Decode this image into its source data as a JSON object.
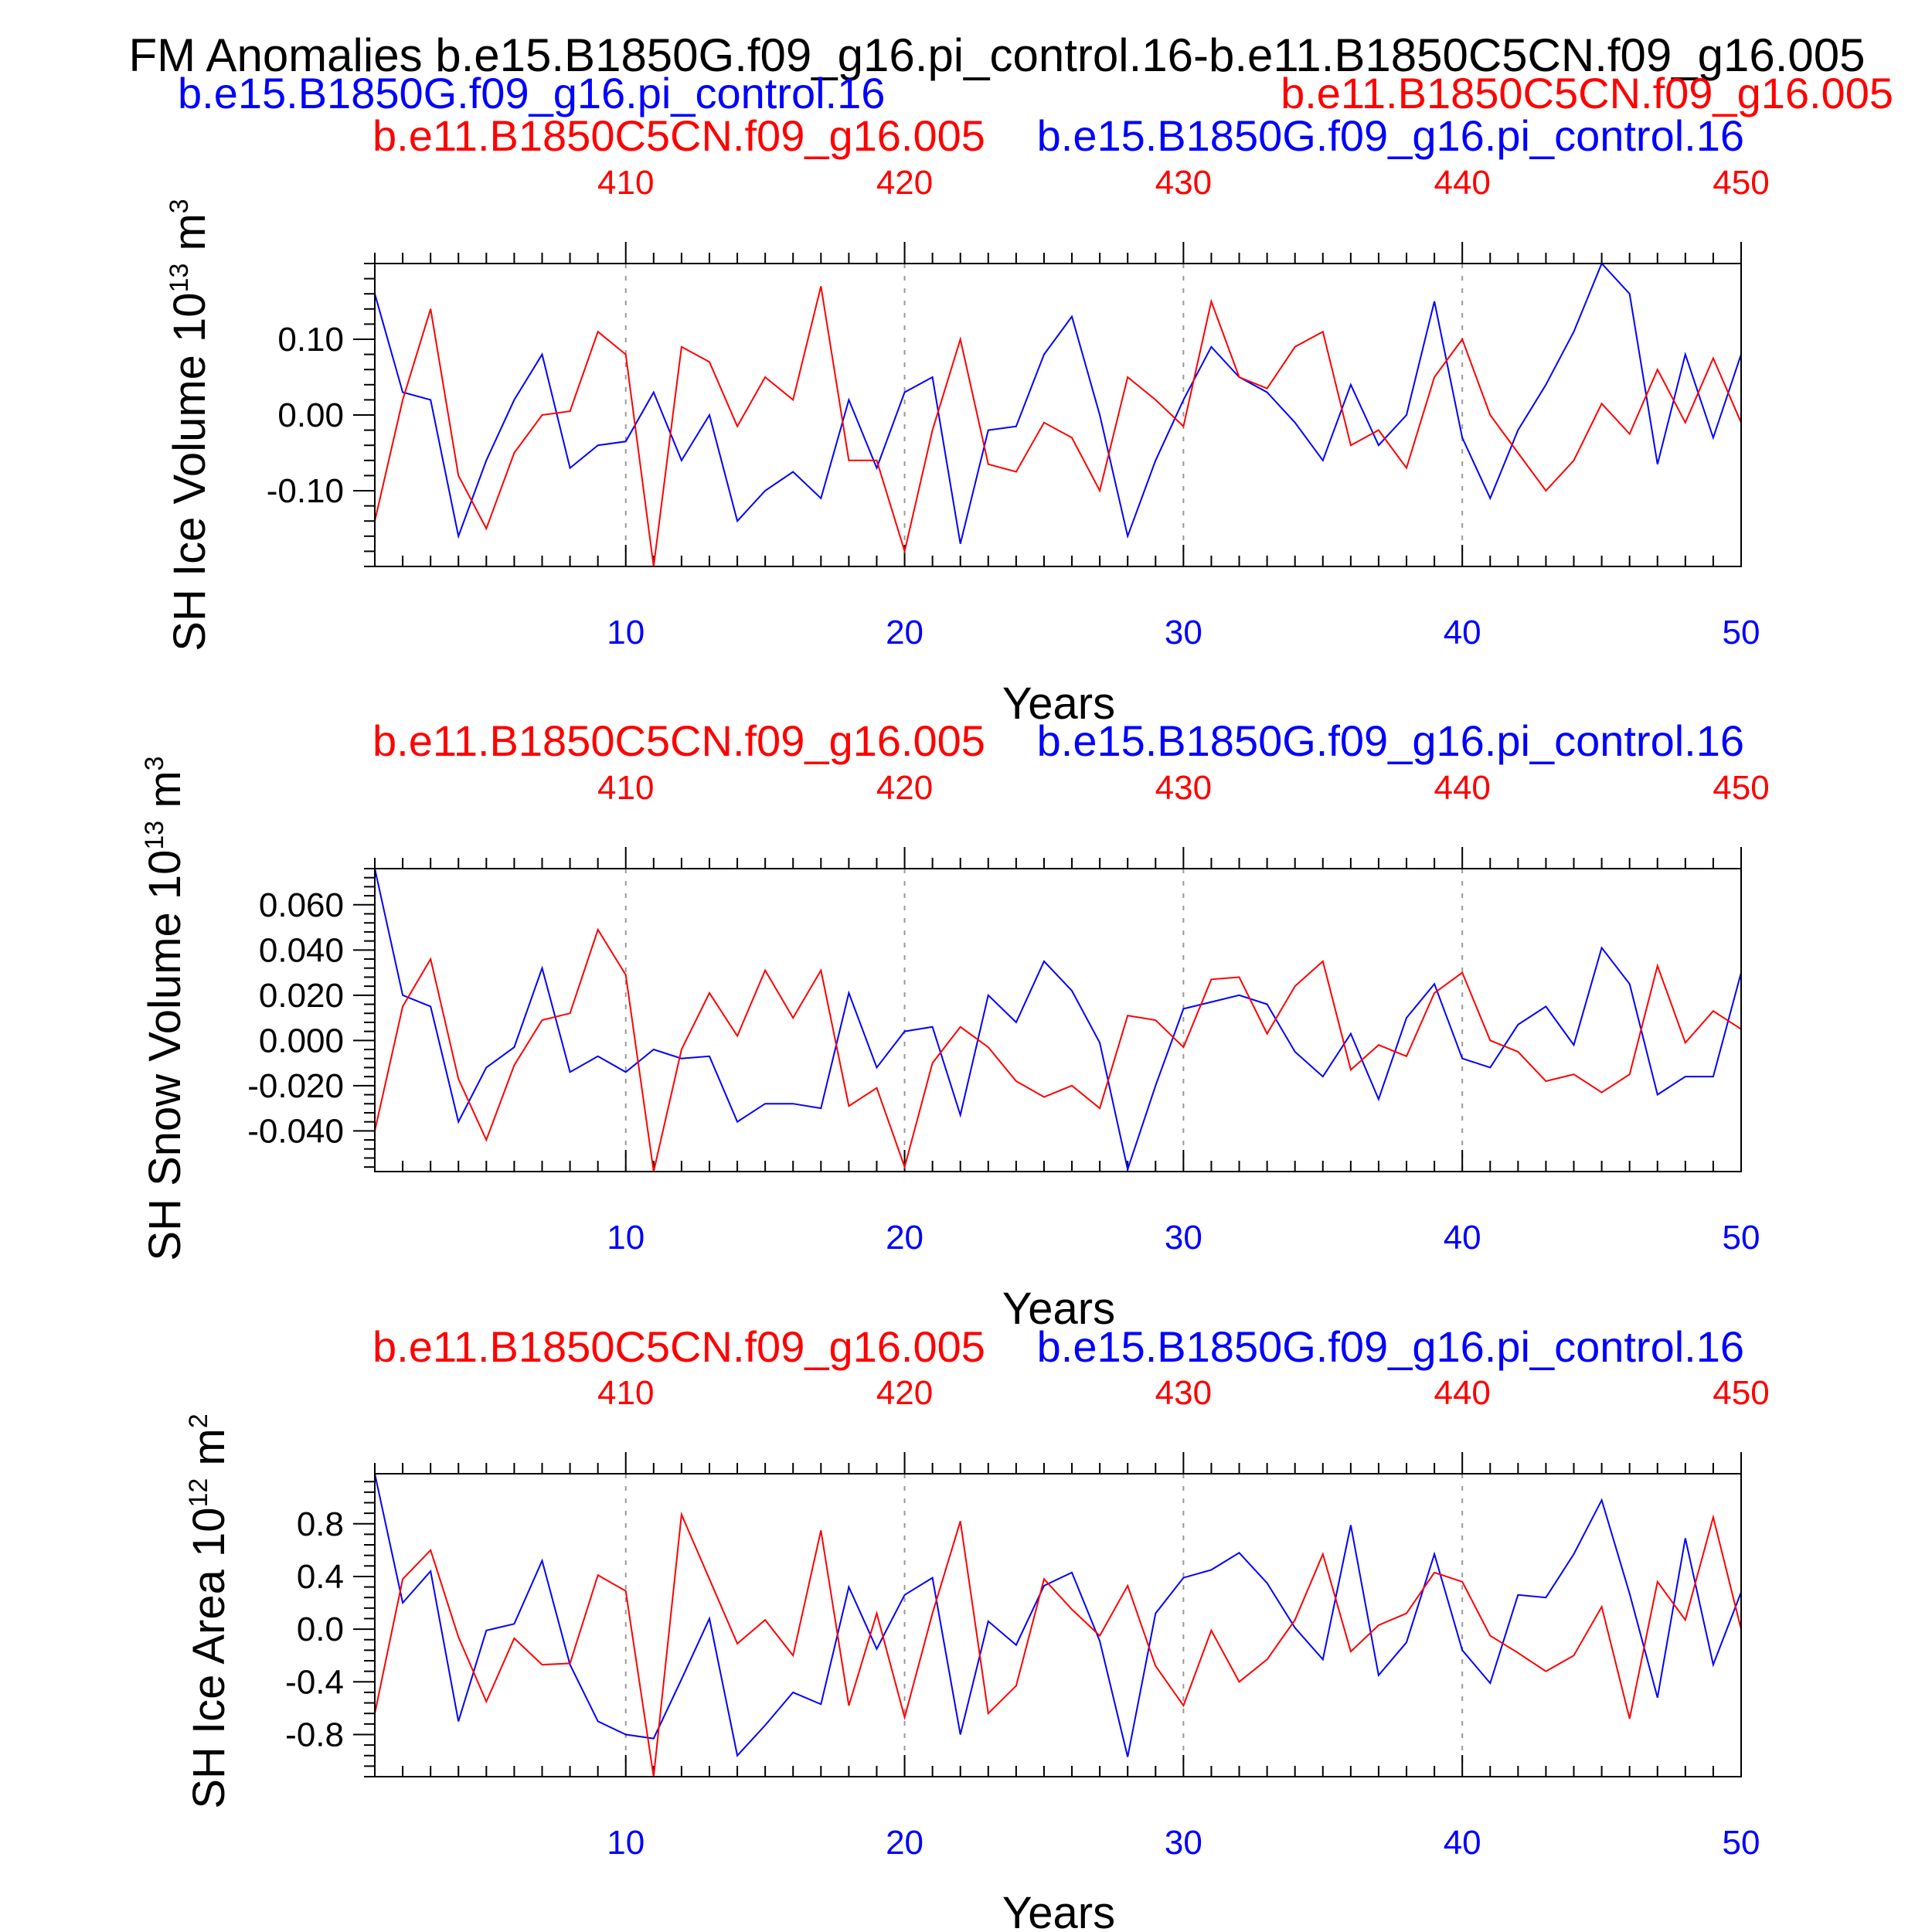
{
  "figure": {
    "title": "FM Anomalies b.e15.B1850G.f09_g16.pi_control.16-b.e11.B1850C5CN.f09_g16.005",
    "legend_left": "b.e15.B1850G.f09_g16.pi_control.16",
    "legend_right": "b.e11.B1850C5CN.f09_g16.005"
  },
  "colors": {
    "series_a": "#0000ff",
    "series_b": "#ff0000",
    "axis": "#000000",
    "grid": "#999999"
  },
  "chart_data": [
    {
      "type": "line",
      "ylabel": "SH Ice Volume 10",
      "ylabel_sup": "13",
      "ylabel_unit": " m",
      "ylabel_unit_sup": "3",
      "xlabel": "Years",
      "top_label_b": "b.e11.B1850C5CN.f09_g16.005",
      "top_label_a": "b.e15.B1850G.f09_g16.pi_control.16",
      "x": [
        1,
        2,
        3,
        4,
        5,
        6,
        7,
        8,
        9,
        10,
        11,
        12,
        13,
        14,
        15,
        16,
        17,
        18,
        19,
        20,
        21,
        22,
        23,
        24,
        25,
        26,
        27,
        28,
        29,
        30,
        31,
        32,
        33,
        34,
        35,
        36,
        37,
        38,
        39,
        40,
        41,
        42,
        43,
        44,
        45,
        46,
        47,
        48,
        49,
        50
      ],
      "xlim": [
        1,
        50
      ],
      "ylim": [
        -0.2,
        0.2
      ],
      "yticks": [
        -0.1,
        0.0,
        0.1
      ],
      "ytick_labels": [
        "-0.10",
        "0.00",
        "0.10"
      ],
      "xticks": [
        10,
        20,
        30,
        40,
        50
      ],
      "xtick_labels": [
        "10",
        "20",
        "30",
        "40",
        "50"
      ],
      "top_xticks": [
        10,
        20,
        30,
        40,
        50
      ],
      "top_xtick_labels": [
        "410",
        "420",
        "430",
        "440",
        "450"
      ],
      "series": [
        {
          "name": "b.e15.B1850G.f09_g16.pi_control.16",
          "color": "#0000ff",
          "values": [
            0.16,
            0.03,
            0.02,
            -0.16,
            -0.06,
            0.02,
            0.08,
            -0.07,
            -0.04,
            -0.035,
            0.03,
            -0.06,
            0.0,
            -0.14,
            -0.1,
            -0.075,
            -0.11,
            0.02,
            -0.07,
            0.03,
            0.05,
            -0.17,
            -0.02,
            -0.015,
            0.08,
            0.13,
            0.0,
            -0.16,
            -0.06,
            0.02,
            0.09,
            0.05,
            0.03,
            -0.01,
            -0.06,
            0.04,
            -0.04,
            0.0,
            0.15,
            -0.03,
            -0.11,
            -0.02,
            0.04,
            0.11,
            0.2,
            0.16,
            -0.065,
            0.08,
            -0.03,
            0.08
          ]
        },
        {
          "name": "b.e11.B1850C5CN.f09_g16.005",
          "color": "#ff0000",
          "values": [
            -0.14,
            0.02,
            0.14,
            -0.08,
            -0.15,
            -0.05,
            0.0,
            0.005,
            0.11,
            0.08,
            -0.2,
            0.09,
            0.07,
            -0.015,
            0.05,
            0.02,
            0.17,
            -0.06,
            -0.06,
            -0.18,
            -0.02,
            0.1,
            -0.065,
            -0.075,
            -0.01,
            -0.03,
            -0.1,
            0.05,
            0.02,
            -0.015,
            0.15,
            0.05,
            0.035,
            0.09,
            0.11,
            -0.04,
            -0.02,
            -0.07,
            0.05,
            0.1,
            0.0,
            -0.05,
            -0.1,
            -0.06,
            0.015,
            -0.025,
            0.06,
            -0.01,
            0.075,
            -0.01
          ]
        }
      ]
    },
    {
      "type": "line",
      "ylabel": "SH Snow Volume 10",
      "ylabel_sup": "13",
      "ylabel_unit": " m",
      "ylabel_unit_sup": "3",
      "xlabel": "Years",
      "top_label_b": "b.e11.B1850C5CN.f09_g16.005",
      "top_label_a": "b.e15.B1850G.f09_g16.pi_control.16",
      "x": [
        1,
        2,
        3,
        4,
        5,
        6,
        7,
        8,
        9,
        10,
        11,
        12,
        13,
        14,
        15,
        16,
        17,
        18,
        19,
        20,
        21,
        22,
        23,
        24,
        25,
        26,
        27,
        28,
        29,
        30,
        31,
        32,
        33,
        34,
        35,
        36,
        37,
        38,
        39,
        40,
        41,
        42,
        43,
        44,
        45,
        46,
        47,
        48,
        49,
        50
      ],
      "xlim": [
        1,
        50
      ],
      "ylim": [
        -0.058,
        0.076
      ],
      "yticks": [
        -0.04,
        -0.02,
        0.0,
        0.02,
        0.04,
        0.06
      ],
      "ytick_labels": [
        "-0.040",
        "-0.020",
        "0.000",
        "0.020",
        "0.040",
        "0.060"
      ],
      "xticks": [
        10,
        20,
        30,
        40,
        50
      ],
      "xtick_labels": [
        "10",
        "20",
        "30",
        "40",
        "50"
      ],
      "top_xticks": [
        10,
        20,
        30,
        40,
        50
      ],
      "top_xtick_labels": [
        "410",
        "420",
        "430",
        "440",
        "450"
      ],
      "series": [
        {
          "name": "b.e15.B1850G.f09_g16.pi_control.16",
          "color": "#0000ff",
          "values": [
            0.076,
            0.02,
            0.015,
            -0.036,
            -0.012,
            -0.003,
            0.032,
            -0.014,
            -0.007,
            -0.014,
            -0.004,
            -0.008,
            -0.007,
            -0.036,
            -0.028,
            -0.028,
            -0.03,
            0.021,
            -0.012,
            0.004,
            0.006,
            -0.033,
            0.02,
            0.008,
            0.035,
            0.022,
            -0.001,
            -0.057,
            -0.02,
            0.014,
            0.017,
            0.02,
            0.016,
            -0.005,
            -0.016,
            0.003,
            -0.026,
            0.01,
            0.025,
            -0.008,
            -0.012,
            0.007,
            0.015,
            -0.002,
            0.041,
            0.025,
            -0.024,
            -0.016,
            -0.016,
            0.03
          ]
        },
        {
          "name": "b.e11.B1850C5CN.f09_g16.005",
          "color": "#ff0000",
          "values": [
            -0.04,
            0.015,
            0.036,
            -0.017,
            -0.044,
            -0.011,
            0.009,
            0.012,
            0.049,
            0.029,
            -0.058,
            -0.004,
            0.021,
            0.002,
            0.031,
            0.01,
            0.031,
            -0.029,
            -0.021,
            -0.056,
            -0.01,
            0.006,
            -0.003,
            -0.018,
            -0.025,
            -0.02,
            -0.03,
            0.011,
            0.009,
            -0.003,
            0.027,
            0.028,
            0.003,
            0.024,
            0.035,
            -0.013,
            -0.002,
            -0.007,
            0.021,
            0.03,
            0.0,
            -0.005,
            -0.018,
            -0.015,
            -0.023,
            -0.015,
            0.033,
            -0.001,
            0.013,
            0.005
          ]
        }
      ]
    },
    {
      "type": "line",
      "ylabel": "SH Ice Area 10",
      "ylabel_sup": "12",
      "ylabel_unit": " m",
      "ylabel_unit_sup": "2",
      "xlabel": "Years",
      "top_label_b": "b.e11.B1850C5CN.f09_g16.005",
      "top_label_a": "b.e15.B1850G.f09_g16.pi_control.16",
      "x": [
        1,
        2,
        3,
        4,
        5,
        6,
        7,
        8,
        9,
        10,
        11,
        12,
        13,
        14,
        15,
        16,
        17,
        18,
        19,
        20,
        21,
        22,
        23,
        24,
        25,
        26,
        27,
        28,
        29,
        30,
        31,
        32,
        33,
        34,
        35,
        36,
        37,
        38,
        39,
        40,
        41,
        42,
        43,
        44,
        45,
        46,
        47,
        48,
        49,
        50
      ],
      "xlim": [
        1,
        50
      ],
      "ylim": [
        -1.12,
        1.18
      ],
      "yticks": [
        -0.8,
        -0.4,
        0.0,
        0.4,
        0.8
      ],
      "ytick_labels": [
        "-0.8",
        "-0.4",
        "0.0",
        "0.4",
        "0.8"
      ],
      "xticks": [
        10,
        20,
        30,
        40,
        50
      ],
      "xtick_labels": [
        "10",
        "20",
        "30",
        "40",
        "50"
      ],
      "top_xticks": [
        10,
        20,
        30,
        40,
        50
      ],
      "top_xtick_labels": [
        "410",
        "420",
        "430",
        "440",
        "450"
      ],
      "series": [
        {
          "name": "b.e15.B1850G.f09_g16.pi_control.16",
          "color": "#0000ff",
          "values": [
            1.18,
            0.2,
            0.44,
            -0.7,
            -0.01,
            0.04,
            0.52,
            -0.27,
            -0.7,
            -0.8,
            -0.83,
            -0.38,
            0.08,
            -0.96,
            -0.73,
            -0.48,
            -0.57,
            0.32,
            -0.15,
            0.26,
            0.39,
            -0.8,
            0.06,
            -0.12,
            0.33,
            0.43,
            -0.09,
            -0.97,
            0.12,
            0.39,
            0.45,
            0.58,
            0.35,
            0.01,
            -0.23,
            0.79,
            -0.35,
            -0.1,
            0.57,
            -0.16,
            -0.41,
            0.26,
            0.24,
            0.57,
            0.98,
            0.27,
            -0.52,
            0.69,
            -0.27,
            0.28
          ]
        },
        {
          "name": "b.e11.B1850C5CN.f09_g16.005",
          "color": "#ff0000",
          "values": [
            -0.64,
            0.38,
            0.6,
            -0.06,
            -0.55,
            -0.07,
            -0.27,
            -0.26,
            0.41,
            0.29,
            -1.12,
            0.87,
            0.38,
            -0.11,
            0.07,
            -0.2,
            0.75,
            -0.58,
            0.12,
            -0.67,
            0.12,
            0.82,
            -0.64,
            -0.43,
            0.38,
            0.15,
            -0.05,
            0.33,
            -0.28,
            -0.58,
            -0.01,
            -0.4,
            -0.23,
            0.07,
            0.57,
            -0.17,
            0.03,
            0.12,
            0.43,
            0.36,
            -0.05,
            -0.18,
            -0.32,
            -0.2,
            0.17,
            -0.68,
            0.36,
            0.07,
            0.85,
            0.0
          ]
        }
      ]
    }
  ]
}
